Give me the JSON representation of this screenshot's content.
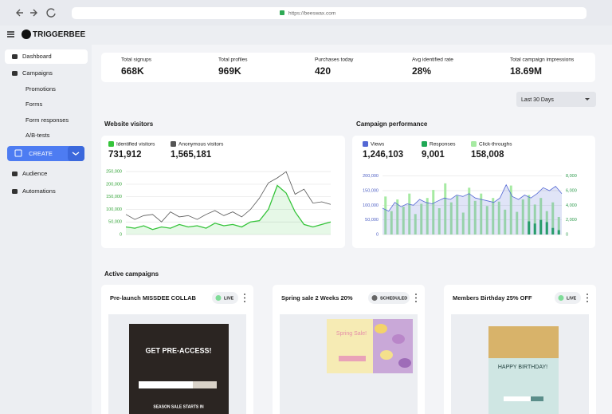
{
  "browser": {
    "url": "https://beeswax.com"
  },
  "brand": "TRIGGERBEE",
  "nav": {
    "items": [
      "Dashboard",
      "Campaigns",
      "Promotions",
      "Forms",
      "Form responses",
      "A/B-tests",
      "Audience",
      "Automations"
    ],
    "create": "CREATE"
  },
  "stats": [
    {
      "label": "Total signups",
      "value": "668K"
    },
    {
      "label": "Total profiles",
      "value": "969K"
    },
    {
      "label": "Purchases today",
      "value": "420"
    },
    {
      "label": "Avg identified rate",
      "value": "28%"
    },
    {
      "label": "Total campaign impressions",
      "value": "18.69M"
    }
  ],
  "date_filter": "Last 30 Days",
  "visitors": {
    "type": "line",
    "title": "Website visitors",
    "series": [
      {
        "name": "Identified visitors",
        "color": "#35c43a",
        "total": "731,912",
        "area": true,
        "values": [
          30000,
          25000,
          35000,
          20000,
          30000,
          25000,
          40000,
          30000,
          35000,
          25000,
          45000,
          35000,
          40000,
          30000,
          50000,
          55000,
          100000,
          195000,
          165000,
          90000,
          40000,
          30000,
          40000,
          50000
        ]
      },
      {
        "name": "Anonymous visitors",
        "color": "#555555",
        "total": "1,565,181",
        "values": [
          80000,
          60000,
          75000,
          80000,
          50000,
          90000,
          70000,
          75000,
          60000,
          80000,
          95000,
          75000,
          90000,
          70000,
          100000,
          145000,
          205000,
          225000,
          250000,
          160000,
          180000,
          125000,
          130000,
          120000
        ]
      }
    ],
    "ylim": [
      0,
      260000
    ],
    "yticks": [
      0,
      {
        "value": 50000,
        "label": "50,000"
      },
      {
        "value": 100000,
        "label": "100,000"
      },
      {
        "value": 150000,
        "label": "150,000"
      },
      {
        "value": 200000,
        "label": "200,000"
      },
      {
        "value": 250000,
        "label": "250,000"
      }
    ]
  },
  "performance": {
    "type": "bar-line",
    "title": "Campaign performance",
    "series": [
      {
        "name": "Views",
        "color": "#5468d4",
        "total": "1,246,103",
        "kind": "area",
        "values": [
          90000,
          80000,
          110000,
          95000,
          105000,
          100000,
          120000,
          110000,
          105000,
          115000,
          125000,
          120000,
          135000,
          130000,
          140000,
          125000,
          120000,
          115000,
          110000,
          125000,
          170000,
          130000,
          120000,
          135000,
          125000,
          140000,
          160000,
          150000,
          165000,
          140000
        ]
      },
      {
        "name": "Responses",
        "color": "#1fa855",
        "total": "9,001",
        "kind": "bar",
        "axis": "y2",
        "values": [
          0,
          0,
          0,
          0,
          0,
          0,
          0,
          0,
          0,
          0,
          0,
          0,
          0,
          0,
          0,
          0,
          0,
          0,
          0,
          0,
          0,
          0,
          0,
          0,
          1800,
          1500,
          2000,
          1700,
          900,
          600
        ]
      },
      {
        "name": "Click-throughs",
        "color": "#a6eaa2",
        "total": "158,008",
        "kind": "bar",
        "axis": "y2",
        "values": [
          5200,
          3200,
          4800,
          3800,
          5600,
          2800,
          4200,
          5000,
          6100,
          3600,
          7000,
          4400,
          5300,
          3000,
          6400,
          4600,
          5600,
          3900,
          5000,
          4500,
          3400,
          6700,
          3100,
          4800,
          5400,
          4100,
          5000,
          3200,
          4400,
          2400
        ]
      }
    ],
    "ylim": [
      0,
      210000
    ],
    "yticks": [
      0,
      {
        "value": 50000,
        "label": "50,000"
      },
      {
        "value": 100000,
        "label": "100,000"
      },
      {
        "value": 150000,
        "label": "150,000"
      },
      {
        "value": 200000,
        "label": "200,000"
      }
    ],
    "y2lim": [
      0,
      8400
    ],
    "y2ticks": [
      0,
      {
        "value": 2000,
        "label": "2,000"
      },
      {
        "value": 4000,
        "label": "4,000"
      },
      {
        "value": 6000,
        "label": "6,000"
      },
      {
        "value": 8000,
        "label": "8,000"
      }
    ]
  },
  "campaigns": {
    "title": "Active campaigns",
    "items": [
      {
        "name": "Pre-launch MISSDEE COLLAB",
        "status": "LIVE",
        "preview": {
          "headline": "GET PRE-ACCESS!",
          "footer": "SEASON SALE STARTS IN"
        }
      },
      {
        "name": "Spring sale 2 Weeks 20%",
        "status": "SCHEDULED",
        "preview": {
          "headline": "Spring Sale!"
        }
      },
      {
        "name": "Members Birthday 25% OFF",
        "status": "LIVE",
        "preview": {
          "headline": "HAPPY BIRTHDAY!"
        }
      }
    ]
  }
}
